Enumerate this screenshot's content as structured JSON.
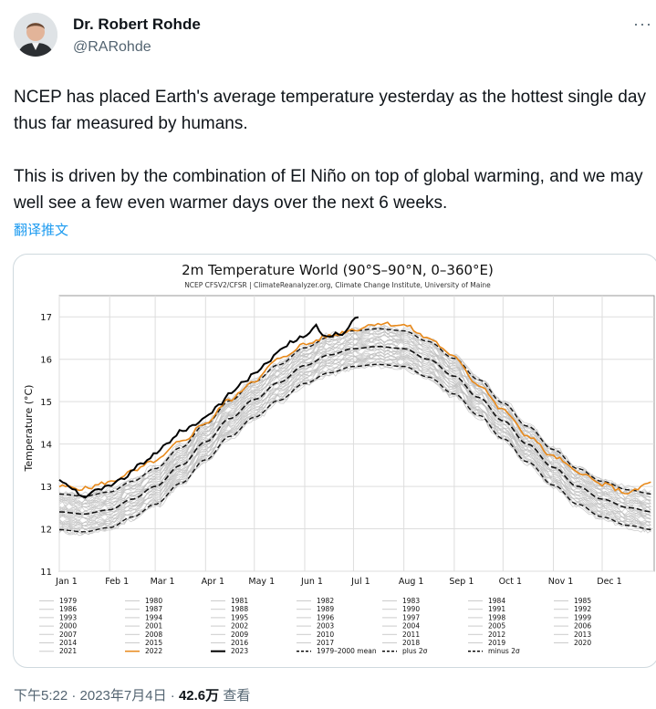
{
  "author": {
    "name": "Dr. Robert Rohde",
    "handle": "@RARohde"
  },
  "tweet": {
    "text": "NCEP has placed Earth's average temperature yesterday as the hottest single day thus far measured by humans.\n\nThis is driven by the combination of El Niño on top of global warming, and we may well see a few even warmer days over the next 6 weeks.",
    "translate_label": "翻译推文",
    "more_label": "···"
  },
  "meta": {
    "time": "下午5:22 · 2023年7月4日",
    "sep": " · ",
    "views": "42.6万",
    "views_label": "查看"
  },
  "colors": {
    "y2022": "#e8891a",
    "y2023": "#000000",
    "other_years": "#bdbdbd",
    "link": "#1d9bf0"
  },
  "chart_data": {
    "type": "line",
    "title": "2m Temperature World (90°S–90°N, 0–360°E)",
    "subtitle": "NCEP CFSV2/CFSR | ClimateReanalyzer.org, Climate Change Institute, University of Maine",
    "ylabel": "Temperature (°C)",
    "ylim": [
      11,
      17.5
    ],
    "yticks": [
      "11",
      "12",
      "13",
      "14",
      "15",
      "16",
      "17"
    ],
    "xlim": [
      0,
      366
    ],
    "months": [
      "Jan 1",
      "Feb 1",
      "Mar 1",
      "Apr 1",
      "May 1",
      "Jun 1",
      "Jul 1",
      "Aug 1",
      "Sep 1",
      "Oct 1",
      "Nov 1",
      "Dec 1"
    ],
    "month_days": [
      0,
      31,
      59,
      90,
      120,
      151,
      181,
      212,
      243,
      273,
      304,
      334
    ],
    "grid": true,
    "mean_curve": {
      "x": [
        0,
        15,
        31,
        45,
        59,
        75,
        90,
        105,
        120,
        135,
        151,
        166,
        181,
        196,
        212,
        227,
        243,
        258,
        273,
        288,
        304,
        319,
        334,
        350,
        365
      ],
      "y": [
        12.4,
        12.35,
        12.45,
        12.7,
        13.0,
        13.5,
        14.05,
        14.6,
        15.05,
        15.45,
        15.85,
        16.1,
        16.25,
        16.3,
        16.25,
        16.0,
        15.6,
        15.1,
        14.55,
        14.0,
        13.45,
        13.0,
        12.7,
        12.5,
        12.4
      ]
    },
    "y2022": {
      "x": [
        0,
        15,
        31,
        45,
        59,
        75,
        90,
        105,
        120,
        135,
        151,
        166,
        181,
        196,
        212,
        227,
        243,
        258,
        273,
        288,
        304,
        319,
        334,
        350,
        365
      ],
      "y": [
        13.0,
        12.95,
        13.1,
        13.35,
        13.6,
        14.05,
        14.5,
        15.05,
        15.5,
        16.0,
        16.35,
        16.55,
        16.7,
        16.85,
        16.8,
        16.5,
        16.05,
        15.4,
        14.8,
        14.2,
        13.7,
        13.35,
        13.05,
        12.85,
        13.1
      ]
    },
    "y2023": {
      "x": [
        0,
        8,
        15,
        22,
        31,
        40,
        49,
        59,
        67,
        75,
        83,
        90,
        98,
        105,
        113,
        120,
        128,
        135,
        143,
        151,
        158,
        162,
        166,
        170,
        174,
        178,
        181,
        183,
        185
      ],
      "y": [
        13.15,
        12.95,
        12.75,
        12.9,
        13.0,
        13.2,
        13.5,
        13.75,
        14.05,
        14.3,
        14.45,
        14.65,
        14.9,
        15.2,
        15.45,
        15.65,
        15.95,
        16.2,
        16.4,
        16.55,
        16.8,
        16.6,
        16.5,
        16.65,
        16.55,
        16.75,
        16.95,
        17.0,
        17.05
      ]
    },
    "legend": {
      "columns": [
        [
          "1979",
          "1986",
          "1993",
          "2000",
          "2007",
          "2014",
          "2021"
        ],
        [
          "1980",
          "1987",
          "1994",
          "2001",
          "2008",
          "2015",
          "2022"
        ],
        [
          "1981",
          "1988",
          "1995",
          "2002",
          "2009",
          "2016",
          "2023"
        ],
        [
          "1982",
          "1989",
          "1996",
          "2003",
          "2010",
          "2017",
          "1979–2000 mean"
        ],
        [
          "1983",
          "1990",
          "1997",
          "2004",
          "2011",
          "2018",
          "plus 2σ"
        ],
        [
          "1984",
          "1991",
          "1998",
          "2005",
          "2012",
          "2019",
          "minus 2σ"
        ],
        [
          "1985",
          "1992",
          "1999",
          "2006",
          "2013",
          "2020"
        ]
      ]
    }
  }
}
